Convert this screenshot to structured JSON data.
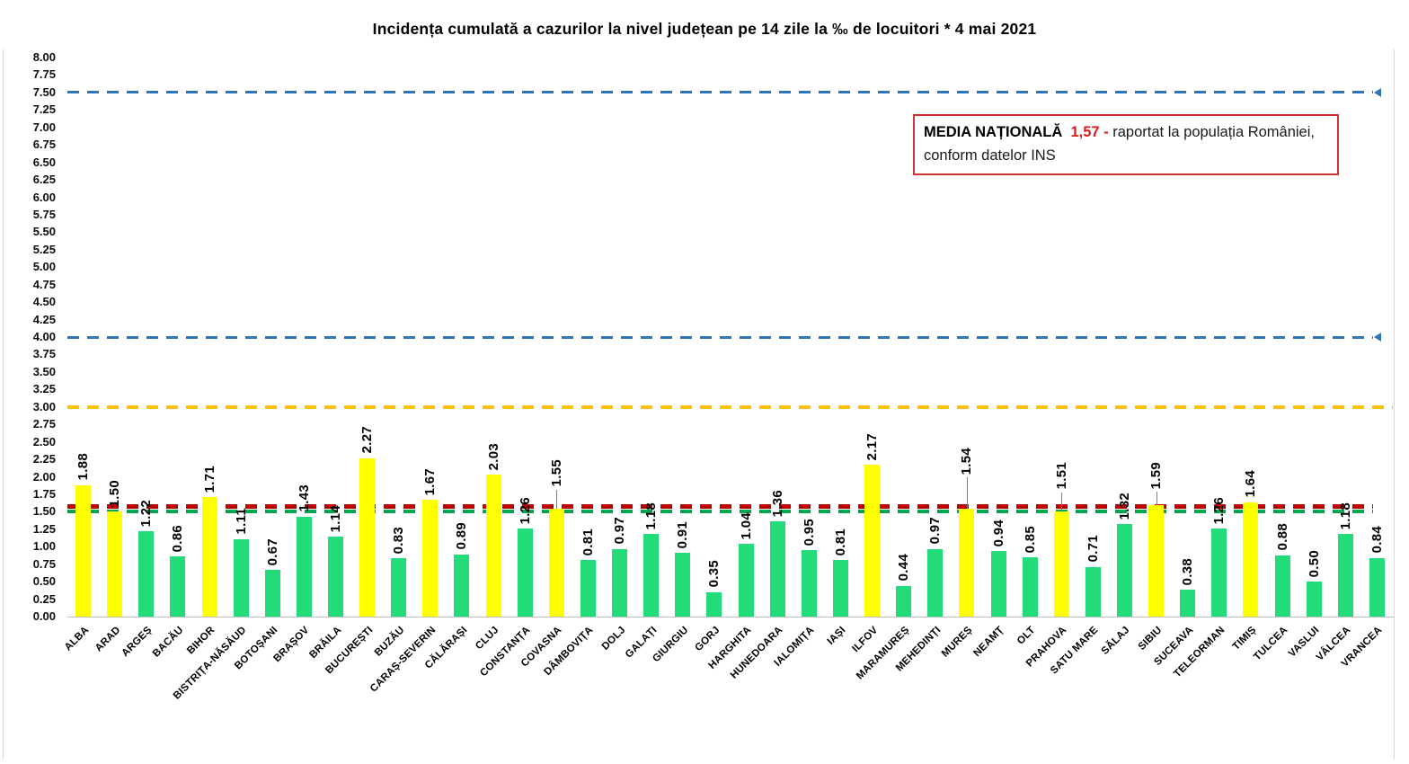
{
  "title": "Incidența cumulată a cazurilor la nivel județean pe 14 zile la ‰ de locuitori *  4 mai 2021",
  "annotation_box": {
    "label_bold": "MEDIA NAȚIONALĂ",
    "value_red": "1,57 -",
    "text_after": "raportat la populația României,",
    "text_line2": "conform datelor INS",
    "border_color": "#cf3434"
  },
  "chart_data": {
    "type": "bar",
    "title": "Incidența cumulată a cazurilor la nivel județean pe 14 zile la ‰ de locuitori *  4 mai 2021",
    "xlabel": "",
    "ylabel": "",
    "ylim": [
      0,
      8
    ],
    "ytick_step": 0.25,
    "grid": false,
    "legend_position": "none",
    "yticks": [
      "0.00",
      "0.25",
      "0.50",
      "0.75",
      "1.00",
      "1.25",
      "1.50",
      "1.75",
      "2.00",
      "2.25",
      "2.50",
      "2.75",
      "3.00",
      "3.25",
      "3.50",
      "3.75",
      "4.00",
      "4.25",
      "4.50",
      "4.75",
      "5.00",
      "5.25",
      "5.50",
      "5.75",
      "6.00",
      "6.25",
      "6.50",
      "6.75",
      "7.00",
      "7.25",
      "7.50",
      "7.75",
      "8.00"
    ],
    "categories": [
      "ALBA",
      "ARAD",
      "ARGEȘ",
      "BACĂU",
      "BIHOR",
      "BISTRIȚA-NĂSĂUD",
      "BOTOȘANI",
      "BRAȘOV",
      "BRĂILA",
      "BUCUREȘTI",
      "BUZĂU",
      "CARAȘ-SEVERIN",
      "CĂLĂRAȘI",
      "CLUJ",
      "CONSTANȚA",
      "COVASNA",
      "DÂMBOVIȚA",
      "DOLJ",
      "GALAȚI",
      "GIURGIU",
      "GORJ",
      "HARGHITA",
      "HUNEDOARA",
      "IALOMIȚA",
      "IAȘI",
      "ILFOV",
      "MARAMUREȘ",
      "MEHEDINȚI",
      "MUREȘ",
      "NEAMȚ",
      "OLT",
      "PRAHOVA",
      "SATU MARE",
      "SĂLAJ",
      "SIBIU",
      "SUCEAVA",
      "TELEORMAN",
      "TIMIȘ",
      "TULCEA",
      "VASLUI",
      "VÂLCEA",
      "VRANCEA"
    ],
    "values": [
      1.88,
      1.5,
      1.22,
      0.86,
      1.71,
      1.11,
      0.67,
      1.43,
      1.14,
      2.27,
      0.83,
      1.67,
      0.89,
      2.03,
      1.26,
      1.55,
      0.81,
      0.97,
      1.18,
      0.91,
      0.35,
      1.04,
      1.36,
      0.95,
      0.81,
      2.17,
      0.44,
      0.97,
      1.54,
      0.94,
      0.85,
      1.51,
      0.71,
      1.32,
      1.59,
      0.38,
      1.26,
      1.64,
      0.88,
      0.5,
      1.18,
      0.84
    ],
    "color_rule": {
      "threshold": 1.5,
      "at_or_above": "#ffff00",
      "below": "#22dc7a"
    },
    "label_leaders": {
      "COVASNA": 24,
      "MUREȘ": 38,
      "PRAHOVA": 24,
      "SIBIU": 18
    },
    "reference_lines": [
      {
        "value": 7.5,
        "color": "#2e75b6",
        "style": "dashed",
        "thickness": 3,
        "arrow": true,
        "full_width": false
      },
      {
        "value": 4.0,
        "color": "#2e75b6",
        "style": "dashed",
        "thickness": 3,
        "arrow": true,
        "full_width": false
      },
      {
        "value": 3.0,
        "color": "#ffc000",
        "style": "dashed",
        "thickness": 4,
        "arrow": false,
        "full_width": true
      },
      {
        "value": 1.57,
        "color": "#c00000",
        "style": "dashed",
        "thickness": 5,
        "arrow": false,
        "full_width": false
      },
      {
        "value": 1.5,
        "color": "#00a550",
        "style": "dashed",
        "thickness": 4,
        "arrow": false,
        "full_width": false
      }
    ]
  }
}
